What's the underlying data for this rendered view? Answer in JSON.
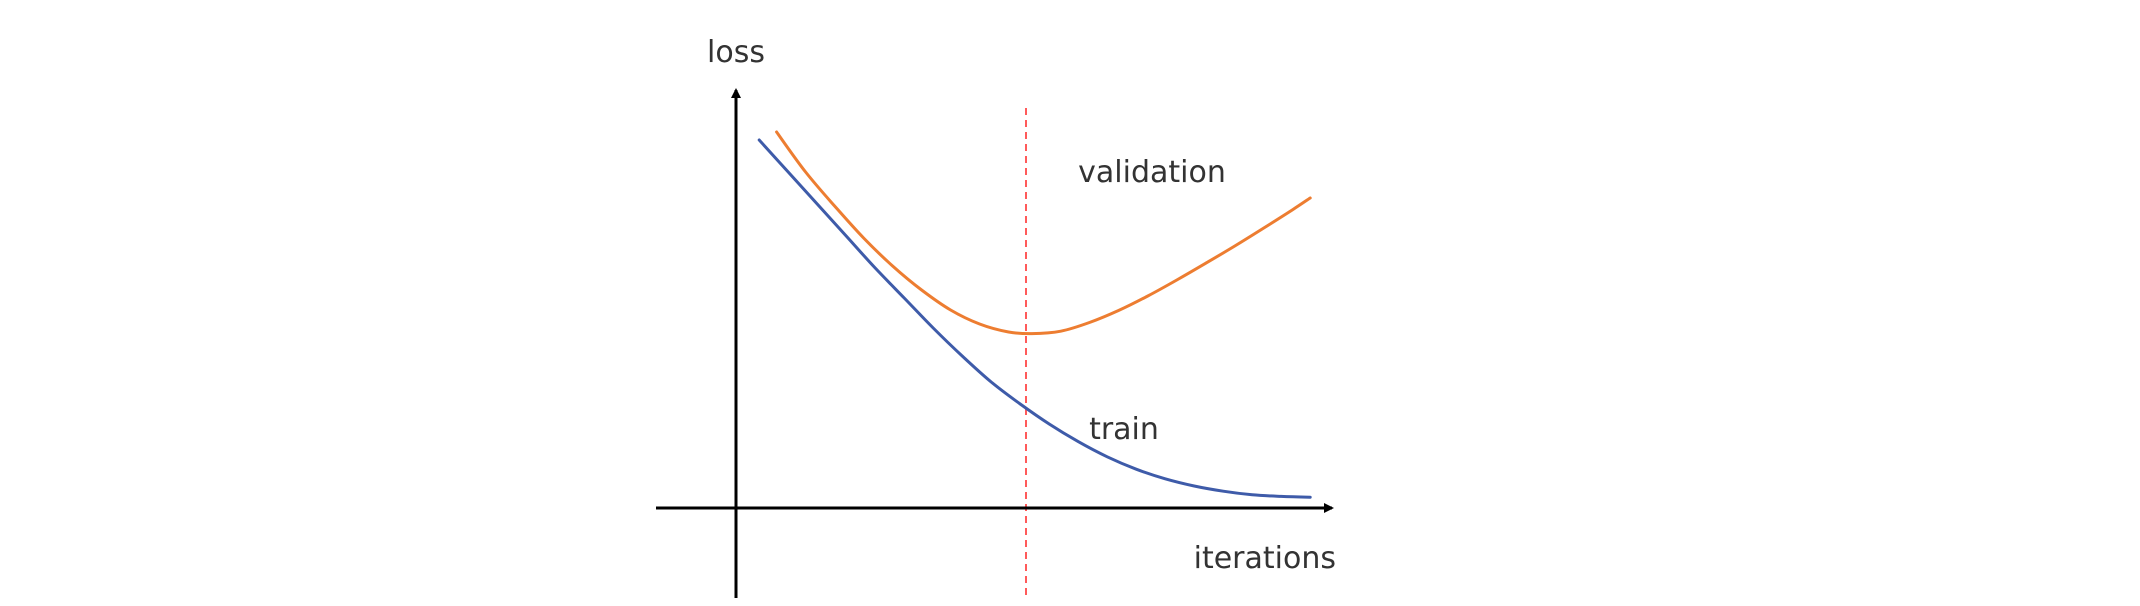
{
  "chart_data": {
    "type": "line",
    "xlabel": "iterations",
    "ylabel": "loss",
    "ticks": "none",
    "grid": false,
    "legend": "inline labels",
    "xlim": [
      0,
      100
    ],
    "ylim": [
      0,
      100
    ],
    "series": [
      {
        "name": "validation",
        "color": "#ED7D31",
        "x": [
          7,
          12,
          17,
          22,
          27,
          32,
          37,
          42,
          47,
          51,
          56,
          61,
          66,
          71,
          76,
          81,
          86,
          91,
          96,
          99
        ],
        "y": [
          94,
          84,
          75.5,
          67.5,
          60.5,
          54.5,
          49.5,
          46,
          44,
          43.6,
          44.2,
          46.4,
          49.4,
          53,
          57,
          61.2,
          65.5,
          70,
          74.6,
          77.5
        ]
      },
      {
        "name": "train",
        "color": "#3E5BA9",
        "x": [
          4,
          9,
          14,
          19,
          24,
          29,
          34,
          39,
          44,
          49,
          54,
          59,
          64,
          69,
          74,
          79,
          84,
          89,
          94,
          99
        ],
        "y": [
          92,
          84,
          76,
          68,
          60,
          52.5,
          45,
          38,
          31.5,
          26,
          21,
          16.6,
          12.8,
          9.7,
          7.3,
          5.5,
          4.2,
          3.3,
          2.9,
          2.7
        ]
      }
    ],
    "annotations": [
      {
        "type": "vertical-dashed-line",
        "x": 50,
        "color": "#FF5A5A"
      }
    ]
  }
}
